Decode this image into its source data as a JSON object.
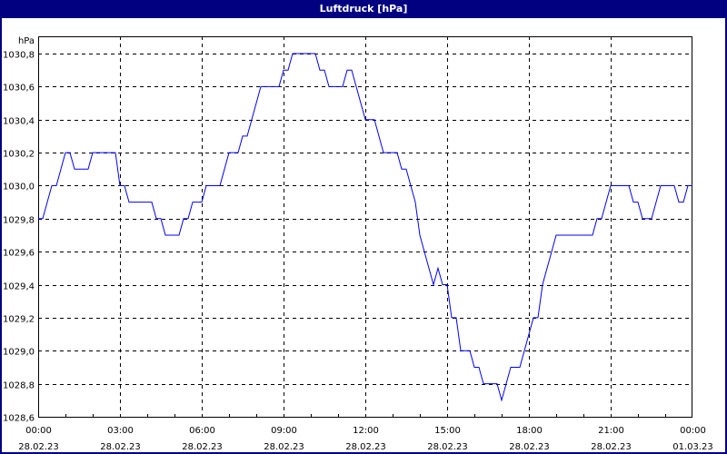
{
  "window": {
    "title": "Luftdruck [hPa]"
  },
  "colors": {
    "titlebar": "#000080",
    "line": "#0000ff",
    "grid": "#000000"
  },
  "chart_data": {
    "type": "line",
    "title": "Luftdruck [hPa]",
    "ylabel": "hPa",
    "xlabel": "",
    "ylim": [
      1028.6,
      1030.9
    ],
    "xlim": [
      "28.02.23 00:00",
      "01.03.23 00:00"
    ],
    "grid": true,
    "yticks": [
      "1030,8",
      "1030,6",
      "1030,4",
      "1030,2",
      "1030,0",
      "1029,8",
      "1029,6",
      "1029,4",
      "1029,2",
      "1029,0",
      "1028,8",
      "1028,6"
    ],
    "ytick_values": [
      1030.8,
      1030.6,
      1030.4,
      1030.2,
      1030.0,
      1029.8,
      1029.6,
      1029.4,
      1029.2,
      1029.0,
      1028.8,
      1028.6
    ],
    "xticks": [
      {
        "time": "00:00",
        "date": "28.02.23"
      },
      {
        "time": "03:00",
        "date": "28.02.23"
      },
      {
        "time": "06:00",
        "date": "28.02.23"
      },
      {
        "time": "09:00",
        "date": "28.02.23"
      },
      {
        "time": "12:00",
        "date": "28.02.23"
      },
      {
        "time": "15:00",
        "date": "28.02.23"
      },
      {
        "time": "18:00",
        "date": "28.02.23"
      },
      {
        "time": "21:00",
        "date": "28.02.23"
      },
      {
        "time": "00:00",
        "date": "01.03.23"
      }
    ],
    "series": [
      {
        "x": [
          "00:00",
          "00:10",
          "00:30",
          "00:40",
          "01:00",
          "01:10",
          "01:20",
          "01:50",
          "02:00",
          "02:50",
          "03:00",
          "03:10",
          "03:20",
          "04:10",
          "04:20",
          "04:30",
          "04:40",
          "05:10",
          "05:20",
          "05:30",
          "05:40",
          "06:00",
          "06:10",
          "06:40",
          "07:00",
          "07:20",
          "07:30",
          "07:40",
          "08:10",
          "08:50",
          "09:00",
          "09:10",
          "09:20",
          "10:10",
          "10:20",
          "10:30",
          "10:40",
          "11:10",
          "11:20",
          "11:30",
          "12:00",
          "12:20",
          "12:40",
          "13:10",
          "13:20",
          "13:30",
          "13:40",
          "13:50",
          "14:00",
          "14:10",
          "14:30",
          "14:40",
          "14:50",
          "15:00",
          "15:10",
          "15:20",
          "15:30",
          "15:50",
          "16:00",
          "16:10",
          "16:20",
          "16:50",
          "17:00",
          "17:20",
          "17:40",
          "17:50",
          "18:10",
          "18:20",
          "18:30",
          "18:50",
          "19:00",
          "20:20",
          "20:30",
          "20:40",
          "21:00",
          "21:40",
          "21:50",
          "22:00",
          "22:10",
          "22:30",
          "22:50",
          "23:20",
          "23:30",
          "23:40",
          "23:50",
          "24:00"
        ],
        "y": [
          1029.8,
          1029.8,
          1030.0,
          1030.0,
          1030.2,
          1030.2,
          1030.1,
          1030.1,
          1030.2,
          1030.2,
          1030.0,
          1030.0,
          1029.9,
          1029.9,
          1029.8,
          1029.8,
          1029.7,
          1029.7,
          1029.8,
          1029.8,
          1029.9,
          1029.9,
          1030.0,
          1030.0,
          1030.2,
          1030.2,
          1030.3,
          1030.3,
          1030.6,
          1030.6,
          1030.7,
          1030.7,
          1030.8,
          1030.8,
          1030.7,
          1030.7,
          1030.6,
          1030.6,
          1030.7,
          1030.7,
          1030.4,
          1030.4,
          1030.2,
          1030.2,
          1030.1,
          1030.1,
          1030.0,
          1029.9,
          1029.7,
          1029.6,
          1029.4,
          1029.5,
          1029.4,
          1029.4,
          1029.2,
          1029.2,
          1029.0,
          1029.0,
          1028.9,
          1028.9,
          1028.8,
          1028.8,
          1028.7,
          1028.9,
          1028.9,
          1029.0,
          1029.2,
          1029.2,
          1029.4,
          1029.6,
          1029.7,
          1029.7,
          1029.8,
          1029.8,
          1030.0,
          1030.0,
          1029.9,
          1029.9,
          1029.8,
          1029.8,
          1030.0,
          1030.0,
          1029.9,
          1029.9,
          1030.0,
          1030.0
        ]
      }
    ]
  }
}
